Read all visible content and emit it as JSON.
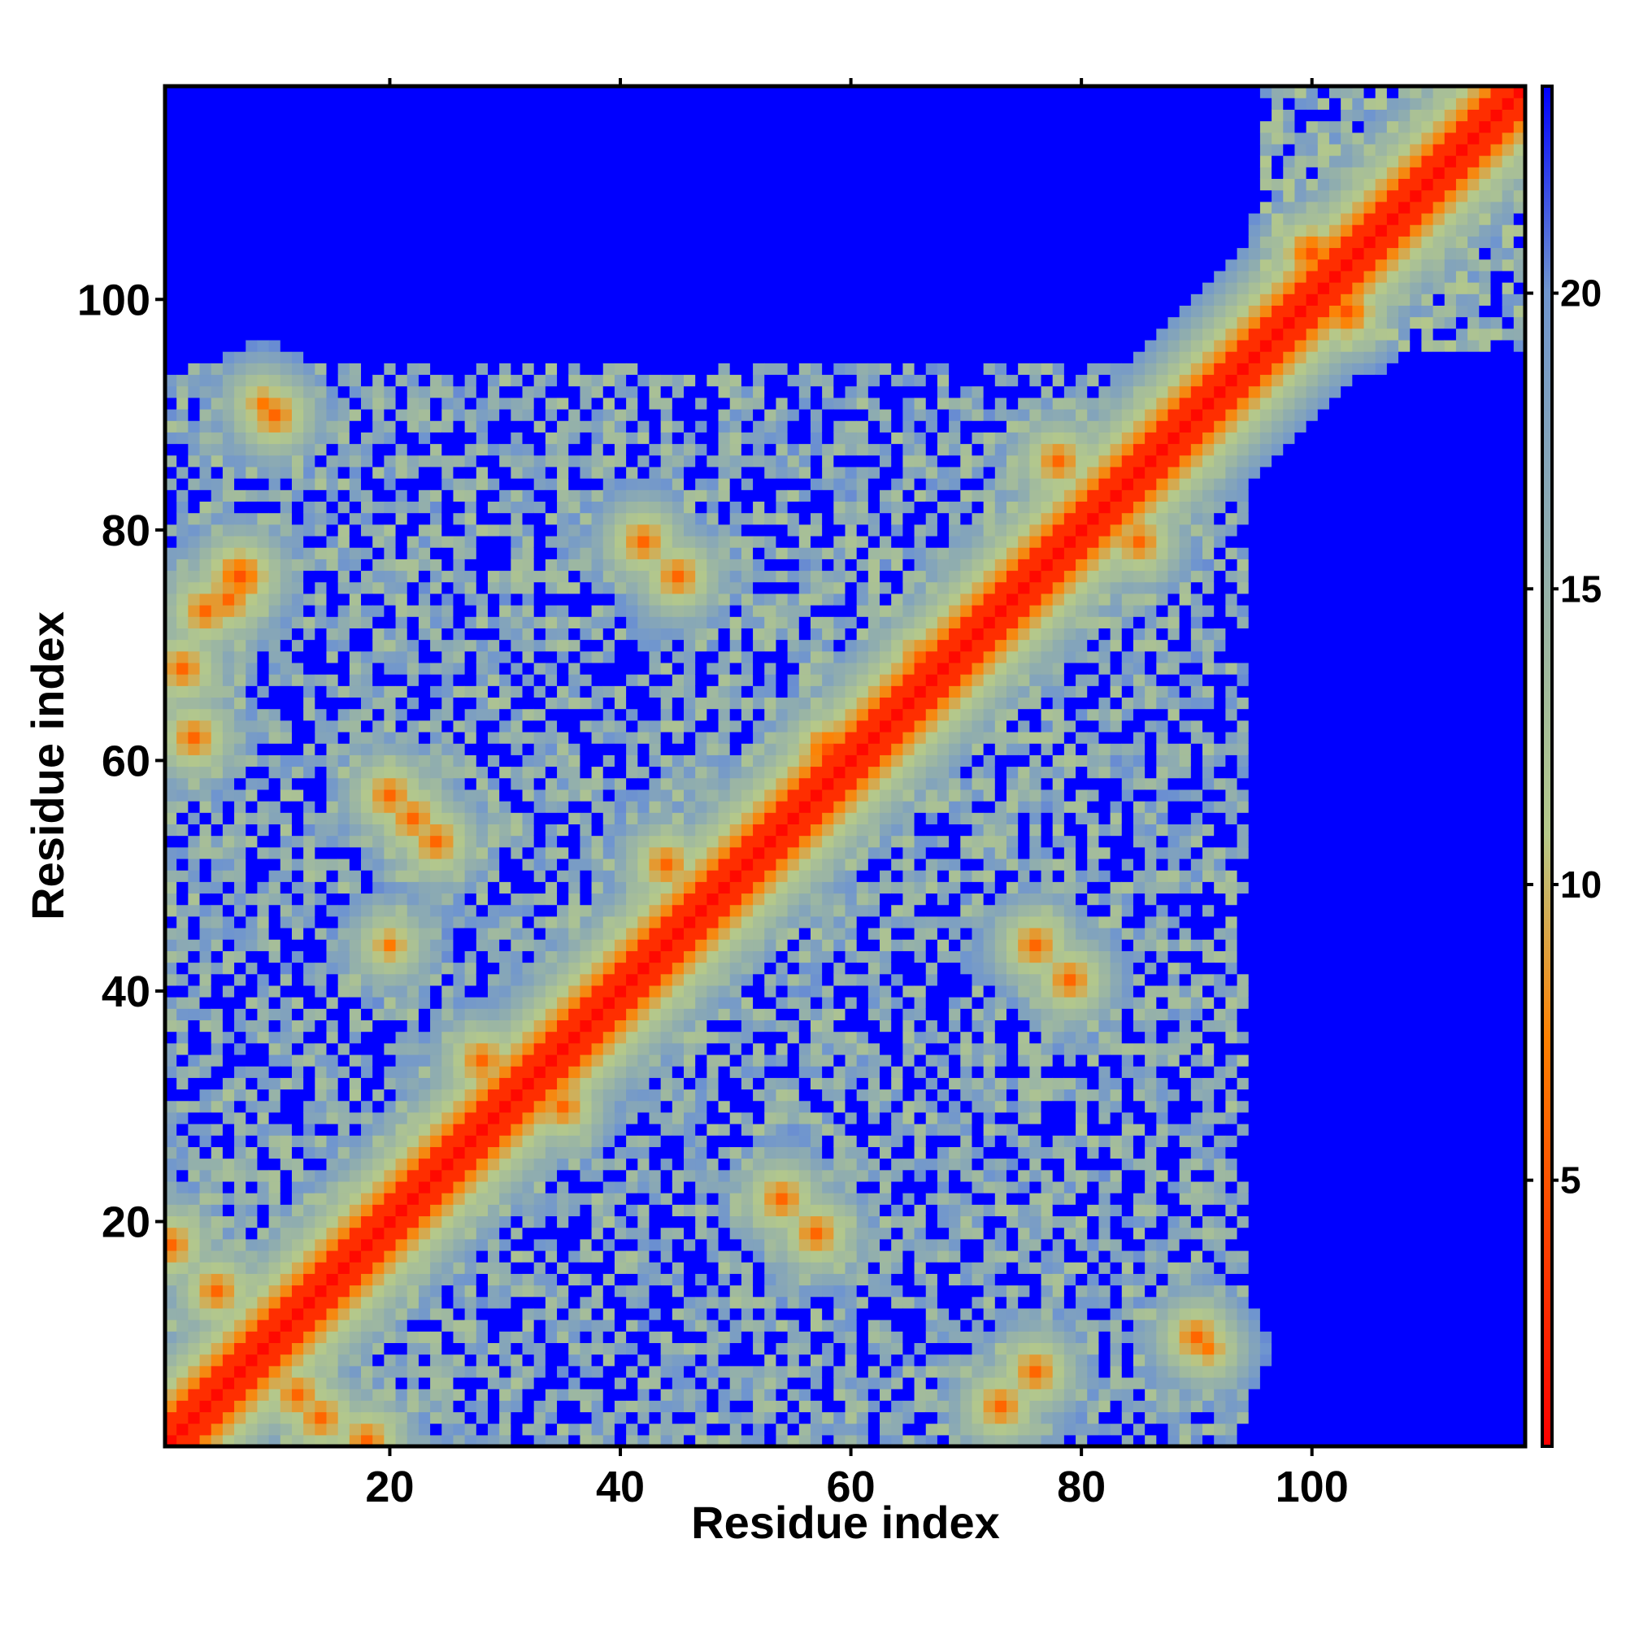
{
  "chart_data": {
    "type": "heatmap",
    "xlabel": "Residue index",
    "ylabel": "Residue index",
    "n_residues": 118,
    "xlim": [
      0.5,
      118.5
    ],
    "ylim": [
      0.5,
      118.5
    ],
    "x_ticks": [
      20,
      40,
      60,
      80,
      100
    ],
    "y_ticks": [
      20,
      40,
      60,
      80,
      100
    ],
    "colorbar": {
      "ticks": [
        5,
        10,
        15,
        20
      ],
      "range": [
        0.5,
        23.5
      ],
      "colors": [
        "#ff0000",
        "#ff8000",
        "#b5c98a",
        "#6f95cf",
        "#0000ff"
      ],
      "stops": [
        0,
        0.3,
        0.45,
        0.85,
        1.0
      ]
    },
    "contacts": [
      {
        "i": 10,
        "j": 90,
        "d": 6
      },
      {
        "i": 9,
        "j": 91,
        "d": 7
      },
      {
        "i": 4,
        "j": 73,
        "d": 6
      },
      {
        "i": 6,
        "j": 74,
        "d": 6
      },
      {
        "i": 7,
        "j": 76,
        "d": 5
      },
      {
        "i": 2,
        "j": 68,
        "d": 6
      },
      {
        "i": 3,
        "j": 62,
        "d": 6
      },
      {
        "i": 20,
        "j": 57,
        "d": 6
      },
      {
        "i": 22,
        "j": 55,
        "d": 6
      },
      {
        "i": 24,
        "j": 53,
        "d": 6
      },
      {
        "i": 20,
        "j": 44,
        "d": 7
      },
      {
        "i": 42,
        "j": 79,
        "d": 6
      },
      {
        "i": 45,
        "j": 76,
        "d": 6
      },
      {
        "i": 78,
        "j": 86,
        "d": 6
      },
      {
        "i": 85,
        "j": 79,
        "d": 6
      },
      {
        "i": 100,
        "j": 104,
        "d": 5
      },
      {
        "i": 103,
        "j": 99,
        "d": 5
      },
      {
        "i": 1,
        "j": 18,
        "d": 6
      },
      {
        "i": 5,
        "j": 14,
        "d": 6
      },
      {
        "i": 12,
        "j": 5,
        "d": 6
      },
      {
        "i": 14,
        "j": 3,
        "d": 6
      },
      {
        "i": 18,
        "j": 1,
        "d": 6
      },
      {
        "i": 54,
        "j": 22,
        "d": 6
      },
      {
        "i": 57,
        "j": 19,
        "d": 6
      },
      {
        "i": 76,
        "j": 7,
        "d": 6
      },
      {
        "i": 73,
        "j": 4,
        "d": 6
      },
      {
        "i": 90,
        "j": 10,
        "d": 6
      },
      {
        "i": 91,
        "j": 9,
        "d": 7
      },
      {
        "i": 76,
        "j": 44,
        "d": 6
      },
      {
        "i": 79,
        "j": 41,
        "d": 6
      },
      {
        "i": 46,
        "j": 47,
        "d": 6
      },
      {
        "i": 44,
        "j": 51,
        "d": 6
      },
      {
        "i": 58,
        "j": 61,
        "d": 5
      },
      {
        "i": 66,
        "j": 69,
        "d": 6
      },
      {
        "i": 35,
        "j": 30,
        "d": 6
      },
      {
        "i": 28,
        "j": 34,
        "d": 6
      }
    ],
    "domains": [
      {
        "lo": 1,
        "hi": 94,
        "d": 12
      },
      {
        "lo": 96,
        "hi": 118,
        "d": 11
      }
    ]
  }
}
